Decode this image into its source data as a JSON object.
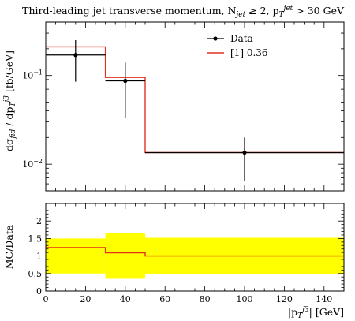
{
  "title": "Third-leading jet transverse momentum, N_jet ≥ 2, p_T^jet > 30 GeV",
  "chart_data": [
    {
      "type": "line",
      "panel": "main",
      "ylabel": "dσ_fid / dp_T^j3 [fb/GeV]",
      "yscale": "log",
      "xlim": [
        0,
        150
      ],
      "ylim": [
        0.005,
        0.4
      ],
      "y_tick_labels": [
        "10^-1",
        "10^-2"
      ],
      "series": [
        {
          "name": "Data",
          "style": "points-with-errorbars",
          "color": "#000000",
          "points": [
            {
              "x": 15,
              "xlo": 0,
              "xhi": 30,
              "y": 0.17,
              "ylo": 0.085,
              "yhi": 0.25
            },
            {
              "x": 40,
              "xlo": 30,
              "xhi": 50,
              "y": 0.087,
              "ylo": 0.033,
              "yhi": 0.14
            },
            {
              "x": 100,
              "xlo": 50,
              "xhi": 150,
              "y": 0.0135,
              "ylo": 0.0064,
              "yhi": 0.02
            }
          ]
        },
        {
          "name": "[1] 0.36",
          "style": "histogram-step",
          "color": "#e0301e",
          "bins": [
            [
              0,
              30,
              0.21
            ],
            [
              30,
              50,
              0.095
            ],
            [
              50,
              150,
              0.0135
            ]
          ]
        }
      ],
      "legend_position": "top-right"
    },
    {
      "type": "area",
      "panel": "ratio",
      "xlabel": "|p_T^j3| [GeV]",
      "ylabel": "MC/Data",
      "xlim": [
        0,
        150
      ],
      "ylim": [
        0,
        2.5
      ],
      "x_ticks": [
        0,
        20,
        40,
        60,
        80,
        100,
        120,
        140
      ],
      "y_ticks": [
        0,
        0.5,
        1,
        1.5,
        2
      ],
      "band_color": "#ffff00",
      "band": [
        [
          0,
          30,
          0.5,
          1.5
        ],
        [
          30,
          50,
          0.35,
          1.65
        ],
        [
          50,
          150,
          0.48,
          1.52
        ]
      ],
      "ratio_line": [
        [
          0,
          30,
          1.24
        ],
        [
          30,
          50,
          1.09
        ],
        [
          50,
          150,
          1.0
        ]
      ],
      "ratio_color": "#e0301e"
    }
  ]
}
